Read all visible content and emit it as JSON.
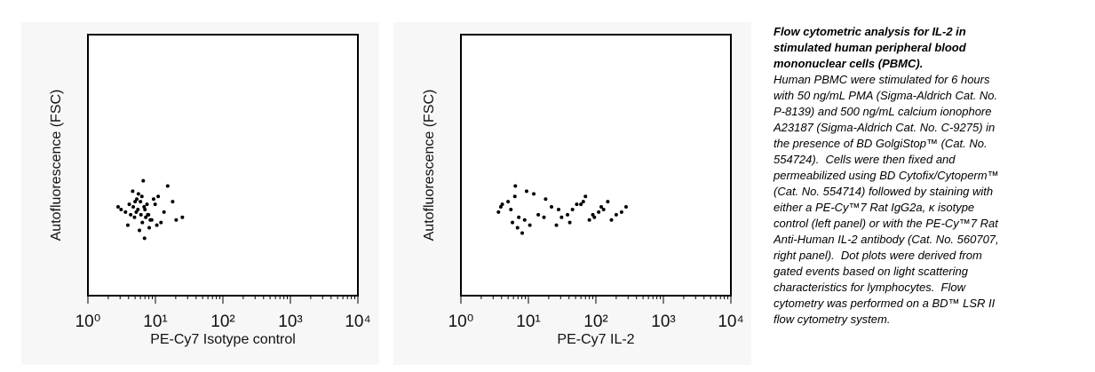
{
  "chart_data": [
    {
      "type": "scatter",
      "x_label": "PE-Cy7 Isotype control",
      "y_label": "Autofluorescence (FSC)",
      "xscale": "log",
      "xlim": [
        1,
        10000
      ],
      "ylim": [
        0,
        100
      ],
      "color": "#000000",
      "xticks": [
        {
          "value": 1,
          "label": "10⁰"
        },
        {
          "value": 10,
          "label": "10¹"
        },
        {
          "value": 100,
          "label": "10²"
        },
        {
          "value": 1000,
          "label": "10³"
        },
        {
          "value": 10000,
          "label": "10⁴"
        }
      ],
      "x": [
        5.5,
        7.2,
        4.1,
        8.8,
        6.3,
        3.6,
        10.5,
        5.0,
        7.9,
        6.8,
        4.6,
        12.1,
        3.1,
        9.4,
        5.8,
        6.1,
        15.2,
        4.9,
        7.5,
        2.8,
        20.3,
        6.6,
        5.2,
        8.1,
        11.0,
        4.3,
        7.0,
        6.0,
        25.1,
        3.9,
        9.9,
        5.6,
        6.9,
        13.4,
        4.7,
        8.4,
        5.3,
        7.7,
        18.0,
        6.4
      ],
      "values": [
        33,
        30,
        35,
        29,
        38,
        32,
        27,
        36,
        31,
        34,
        40,
        28,
        33,
        37,
        25,
        31,
        42,
        30,
        35,
        34,
        29,
        44,
        32,
        26,
        38,
        31,
        33,
        36,
        30,
        27,
        35,
        39,
        22,
        32,
        34,
        29,
        37,
        31,
        36,
        28
      ]
    },
    {
      "type": "scatter",
      "x_label": "PE-Cy7 IL-2",
      "y_label": "Autofluorescence (FSC)",
      "xscale": "log",
      "xlim": [
        1,
        10000
      ],
      "ylim": [
        0,
        100
      ],
      "color": "#000000",
      "xticks": [
        {
          "value": 1,
          "label": "10⁰"
        },
        {
          "value": 10,
          "label": "10¹"
        },
        {
          "value": 100,
          "label": "10²"
        },
        {
          "value": 1000,
          "label": "10³"
        },
        {
          "value": 10000,
          "label": "10⁴"
        }
      ],
      "x": [
        5.5,
        7.2,
        4.1,
        8.8,
        6.3,
        3.6,
        10.5,
        5.0,
        14,
        22,
        31,
        45,
        60,
        80,
        110,
        150,
        200,
        280,
        9.4,
        5.8,
        18,
        26,
        38,
        52,
        70,
        95,
        130,
        170,
        240,
        3.9,
        6.9,
        12,
        17,
        28,
        41,
        65,
        90,
        120,
        6.4,
        8.1
      ],
      "values": [
        33,
        30,
        35,
        29,
        38,
        32,
        27,
        36,
        31,
        34,
        30,
        33,
        35,
        29,
        32,
        36,
        31,
        34,
        40,
        28,
        37,
        27,
        31,
        35,
        38,
        30,
        33,
        29,
        32,
        34,
        26,
        39,
        30,
        33,
        28,
        36,
        31,
        34,
        42,
        24
      ]
    }
  ],
  "caption": {
    "title": "Flow cytometric analysis for IL-2 in stimulated human peripheral blood mononuclear cells (PBMC).",
    "body": "Human PBMC were stimulated for 6 hours with 50 ng/mL PMA (Sigma-Aldrich Cat. No. P-8139) and 500 ng/mL calcium ionophore A23187 (Sigma-Aldrich Cat. No. C-9275) in the presence of BD GolgiStop™ (Cat. No. 554724).  Cells were then fixed and permeabilized using BD Cytofix/Cytoperm™ (Cat. No. 554714) followed by staining with either a PE-Cy™7 Rat IgG2a, κ isotype control (left panel) or with the PE-Cy™7 Rat Anti-Human IL-2 antibody (Cat. No. 560707, right panel).  Dot plots were derived from gated events based on light scattering characteristics for lymphocytes.  Flow cytometry was performed on a BD™ LSR II flow cytometry system."
  }
}
